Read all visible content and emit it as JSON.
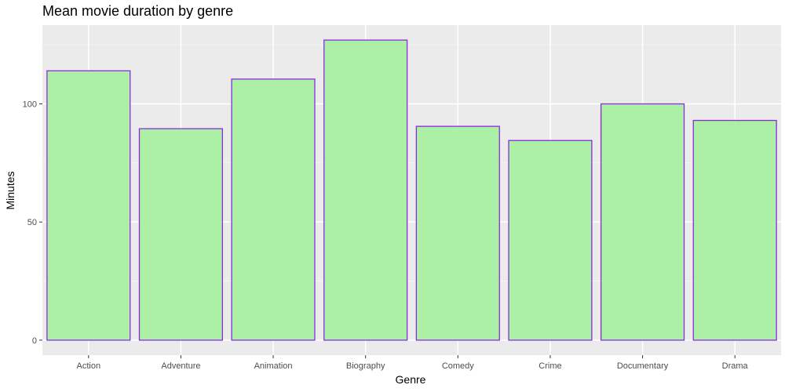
{
  "chart_data": {
    "type": "bar",
    "title": "Mean movie duration by genre",
    "xlabel": "Genre",
    "ylabel": "Minutes",
    "categories": [
      "Action",
      "Adventure",
      "Animation",
      "Biography",
      "Comedy",
      "Crime",
      "Documentary",
      "Drama"
    ],
    "values": [
      114,
      89.5,
      110.5,
      127,
      90.5,
      84.5,
      100,
      93
    ],
    "ylim": [
      -6.35,
      133.35
    ],
    "yticks": [
      0,
      50,
      100
    ],
    "grid": true,
    "legend": "none",
    "colors": {
      "bar_fill": "#a6f09f",
      "bar_stroke": "#8a2be2",
      "panel_background": "#ebebeb",
      "grid_major": "#ffffff",
      "grid_minor": "#f5f5f5"
    }
  }
}
